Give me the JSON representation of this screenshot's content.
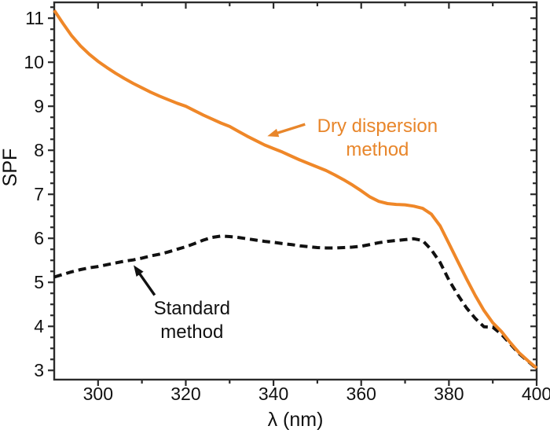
{
  "figure": {
    "background": "#ffffff",
    "frame_color": "#2b2b2b",
    "tick_label_color": "#111111"
  },
  "chart_data": {
    "type": "line",
    "title": "",
    "xlabel": "λ (nm)",
    "ylabel": "SPF",
    "xlim": [
      290,
      400
    ],
    "ylim": [
      2.79,
      11.36
    ],
    "grid": false,
    "x_major_ticks": [
      300,
      320,
      340,
      360,
      380,
      400
    ],
    "x_minor_ticks": [
      310,
      330,
      350,
      370,
      390
    ],
    "x_tick_labels": [
      "300",
      "320",
      "340",
      "360",
      "380",
      "400"
    ],
    "y_major_ticks": [
      3,
      4,
      5,
      6,
      7,
      8,
      9,
      10,
      11
    ],
    "y_tick_labels": [
      "3",
      "4",
      "5",
      "6",
      "7",
      "8",
      "9",
      "10",
      "11"
    ],
    "y_minor_step": 0.25,
    "x": [
      290,
      292,
      294,
      296,
      298,
      300,
      302,
      304,
      306,
      308,
      310,
      312,
      314,
      316,
      318,
      320,
      322,
      324,
      326,
      328,
      330,
      332,
      334,
      336,
      338,
      340,
      342,
      344,
      346,
      348,
      350,
      352,
      354,
      356,
      358,
      360,
      362,
      364,
      366,
      368,
      370,
      372,
      374,
      376,
      378,
      380,
      382,
      384,
      386,
      388,
      390,
      392,
      394,
      396,
      398,
      400
    ],
    "series": [
      {
        "name": "Standard method",
        "style": "dashed",
        "color": "#111111",
        "values": [
          5.12,
          5.18,
          5.24,
          5.29,
          5.33,
          5.36,
          5.4,
          5.44,
          5.48,
          5.51,
          5.55,
          5.6,
          5.64,
          5.69,
          5.75,
          5.81,
          5.88,
          5.96,
          6.02,
          6.05,
          6.04,
          6.02,
          5.99,
          5.96,
          5.93,
          5.91,
          5.88,
          5.86,
          5.83,
          5.81,
          5.79,
          5.78,
          5.78,
          5.79,
          5.8,
          5.82,
          5.86,
          5.9,
          5.93,
          5.95,
          5.97,
          5.99,
          5.95,
          5.74,
          5.45,
          5.05,
          4.72,
          4.42,
          4.18,
          3.99,
          3.98,
          3.82,
          3.6,
          3.38,
          3.21,
          3.04
        ]
      },
      {
        "name": "Dry dispersion method",
        "style": "solid",
        "color": "#EF8728",
        "values": [
          11.18,
          10.88,
          10.6,
          10.37,
          10.18,
          10.02,
          9.88,
          9.75,
          9.63,
          9.52,
          9.42,
          9.32,
          9.23,
          9.15,
          9.07,
          9.0,
          8.9,
          8.8,
          8.71,
          8.62,
          8.54,
          8.43,
          8.32,
          8.22,
          8.12,
          8.04,
          7.96,
          7.87,
          7.78,
          7.7,
          7.62,
          7.54,
          7.44,
          7.33,
          7.21,
          7.08,
          6.94,
          6.84,
          6.79,
          6.77,
          6.76,
          6.73,
          6.68,
          6.55,
          6.28,
          5.88,
          5.48,
          5.08,
          4.7,
          4.36,
          4.08,
          3.88,
          3.63,
          3.4,
          3.22,
          3.05
        ]
      }
    ],
    "annotations": [
      {
        "id": "dry-dispersion-label",
        "lines": [
          "Dry dispersion",
          "method"
        ],
        "color": "#E8862B",
        "x": 363.7,
        "y": 8.41,
        "arrow": {
          "from_x": 347.2,
          "from_y": 8.59,
          "to_x": 338.6,
          "to_y": 8.32
        }
      },
      {
        "id": "standard-method-label",
        "lines": [
          "Standard",
          "method"
        ],
        "color": "#111111",
        "x": 321.4,
        "y": 4.27,
        "arrow": {
          "from_x": 312.9,
          "from_y": 4.71,
          "to_x": 308.1,
          "to_y": 5.39
        }
      }
    ]
  }
}
